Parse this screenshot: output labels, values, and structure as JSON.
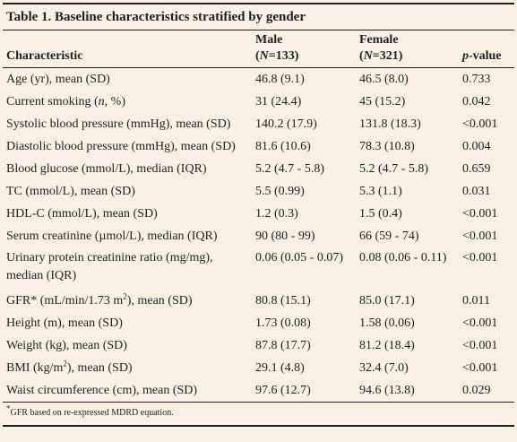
{
  "title": "Table 1. Baseline characteristics stratified by gender",
  "headers": {
    "characteristic": "Characteristic",
    "male": "Male",
    "male_n_prefix": "(",
    "male_n_label": "N",
    "male_n_suffix": "=133)",
    "female": "Female",
    "female_n_prefix": "(",
    "female_n_label": "N",
    "female_n_suffix": "=321)",
    "pvalue_p": "p",
    "pvalue_rest": "-value"
  },
  "rows": [
    {
      "label": "Age (yr), mean (SD)",
      "male": "46.8 (9.1)",
      "female": "46.5 (8.0)",
      "p": "0.733"
    },
    {
      "label_pre": "Current smoking (",
      "label_it": "n",
      "label_post": ", %)",
      "male": "31 (24.4)",
      "female": "45 (15.2)",
      "p": "0.042"
    },
    {
      "label": "Systolic blood pressure (mmHg), mean (SD)",
      "male": "140.2 (17.9)",
      "female": "131.8 (18.3)",
      "p": "<0.001"
    },
    {
      "label": "Diastolic blood pressure (mmHg), mean (SD)",
      "male": "81.6 (10.6)",
      "female": "78.3 (10.8)",
      "p": "0.004"
    },
    {
      "label": "Blood glucose (mmol/L), median (IQR)",
      "male": "5.2 (4.7 - 5.8)",
      "female": "5.2 (4.7 - 5.8)",
      "p": "0.659"
    },
    {
      "label": "TC (mmol/L), mean (SD)",
      "male": "5.5 (0.99)",
      "female": "5.3 (1.1)",
      "p": "0.031"
    },
    {
      "label": "HDL-C (mmol/L), mean (SD)",
      "male": "1.2 (0.3)",
      "female": "1.5 (0.4)",
      "p": "<0.001"
    },
    {
      "label": "Serum creatinine (µmol/L), median (IQR)",
      "male": "90 (80 - 99)",
      "female": "66 (59 - 74)",
      "p": "<0.001"
    },
    {
      "label_line1": "Urinary protein creatinine ratio (mg/mg),",
      "label_line2": "median (IQR)",
      "male": "0.06 (0.05 - 0.07)",
      "female": "0.08 (0.06 - 0.11)",
      "p": "<0.001"
    },
    {
      "label_pre": "GFR* (mL/min/1.73 m",
      "label_sup": "2",
      "label_post": "), mean (SD)",
      "male": "80.8 (15.1)",
      "female": "85.0 (17.1)",
      "p": "0.011"
    },
    {
      "label": "Height (m), mean (SD)",
      "male": "1.73 (0.08)",
      "female": "1.58 (0.06)",
      "p": "<0.001"
    },
    {
      "label": "Weight (kg), mean (SD)",
      "male": "87.8 (17.7)",
      "female": "81.2 (18.4)",
      "p": "<0.001"
    },
    {
      "label_pre": "BMI (kg/m",
      "label_sup": "2",
      "label_post": "), mean (SD)",
      "male": "29.1 (4.8)",
      "female": "32.4 (7.0)",
      "p": "<0.001"
    },
    {
      "label": "Waist circumference (cm), mean (SD)",
      "male": "97.6 (12.7)",
      "female": "94.6 (13.8)",
      "p": "0.029"
    }
  ],
  "footnote_mark": "*",
  "footnote": "GFR based on re-expressed MDRD equation."
}
